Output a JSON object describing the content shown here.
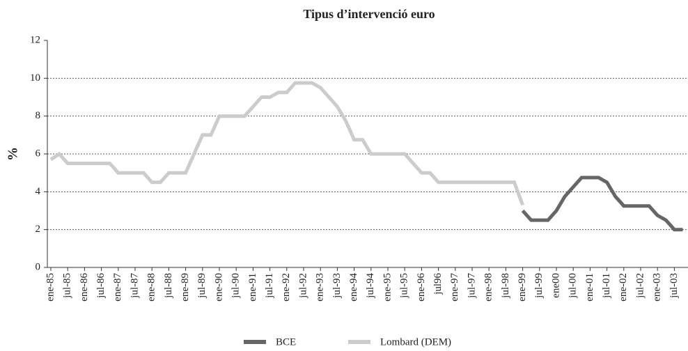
{
  "chart_data": {
    "type": "line",
    "title": "Tipus d’intervenció euro",
    "y_label": "%",
    "categories": [
      "ene-85",
      null,
      "jul-85",
      null,
      "ene-86",
      null,
      "jul-86",
      null,
      "ene-87",
      null,
      "jul-87",
      null,
      "ene-88",
      null,
      "jul-88",
      null,
      "ene-89",
      null,
      "jul-89",
      null,
      "ene-90",
      null,
      "jul-90",
      null,
      "ene-91",
      null,
      "jul-91",
      null,
      "ene-92",
      null,
      "jul-92",
      null,
      "ene-93",
      null,
      "jul-93",
      null,
      "ene-94",
      null,
      "jul-94",
      null,
      "ene-95",
      null,
      "jul-95",
      null,
      "ene-96",
      null,
      "jul96",
      null,
      "ene-97",
      null,
      "jul-97",
      null,
      "ene-98",
      null,
      "jul-98",
      null,
      "ene-99",
      null,
      "jul-99",
      null,
      "ene00",
      null,
      "jul-00",
      null,
      "ene-01",
      null,
      "jul-01",
      null,
      "ene-02",
      null,
      "jul-02",
      null,
      "ene-03",
      null,
      "jul-03",
      null
    ],
    "series": [
      {
        "name": "BCE",
        "color": "#666666",
        "values": [
          null,
          null,
          null,
          null,
          null,
          null,
          null,
          null,
          null,
          null,
          null,
          null,
          null,
          null,
          null,
          null,
          null,
          null,
          null,
          null,
          null,
          null,
          null,
          null,
          null,
          null,
          null,
          null,
          null,
          null,
          null,
          null,
          null,
          null,
          null,
          null,
          null,
          null,
          null,
          null,
          null,
          null,
          null,
          null,
          null,
          null,
          null,
          null,
          null,
          null,
          null,
          null,
          null,
          null,
          null,
          null,
          3.0,
          2.5,
          2.5,
          2.5,
          3.0,
          3.75,
          4.25,
          4.75,
          4.75,
          4.75,
          4.5,
          3.75,
          3.25,
          3.25,
          3.25,
          3.25,
          2.75,
          2.5,
          2.0,
          2.0
        ]
      },
      {
        "name": "Lombard (DEM)",
        "color": "#cccccc",
        "values": [
          5.7,
          6.0,
          5.5,
          5.5,
          5.5,
          5.5,
          5.5,
          5.5,
          5.0,
          5.0,
          5.0,
          5.0,
          4.5,
          4.5,
          5.0,
          5.0,
          5.0,
          6.0,
          7.0,
          7.0,
          8.0,
          8.0,
          8.0,
          8.0,
          8.5,
          9.0,
          9.0,
          9.25,
          9.25,
          9.75,
          9.75,
          9.75,
          9.5,
          9.0,
          8.5,
          7.75,
          6.75,
          6.75,
          6.0,
          6.0,
          6.0,
          6.0,
          6.0,
          5.5,
          5.0,
          5.0,
          4.5,
          4.5,
          4.5,
          4.5,
          4.5,
          4.5,
          4.5,
          4.5,
          4.5,
          4.5,
          3.3,
          null,
          null,
          null,
          null,
          null,
          null,
          null,
          null,
          null,
          null,
          null,
          null,
          null,
          null,
          null,
          null,
          null,
          null,
          null
        ]
      }
    ],
    "ylim": [
      0,
      12
    ],
    "yticks": [
      0,
      2,
      4,
      6,
      8,
      10,
      12
    ],
    "grid": true
  }
}
